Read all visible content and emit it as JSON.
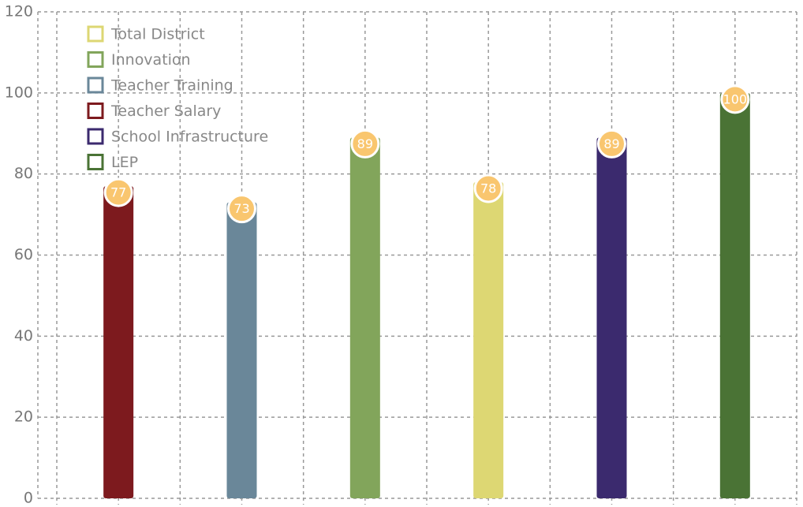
{
  "chart_data": {
    "type": "bar",
    "categories": [
      null,
      null,
      null,
      null,
      null,
      null
    ],
    "series": [
      {
        "name": "Total District",
        "color": "#ddd773",
        "values": [
          null,
          null,
          null,
          78,
          null,
          null
        ]
      },
      {
        "name": "Innovation",
        "color": "#82a55b",
        "values": [
          null,
          null,
          89,
          null,
          null,
          null
        ]
      },
      {
        "name": "Teacher Training",
        "color": "#6a8799",
        "values": [
          null,
          73,
          null,
          null,
          null,
          null
        ]
      },
      {
        "name": "Teacher Salary",
        "color": "#7d1a1e",
        "values": [
          77,
          null,
          null,
          null,
          null,
          null
        ]
      },
      {
        "name": "School Infrastructure",
        "color": "#3b2a6e",
        "values": [
          null,
          null,
          null,
          null,
          89,
          null
        ]
      },
      {
        "name": "LEP",
        "color": "#4a7335",
        "values": [
          null,
          null,
          null,
          null,
          null,
          100
        ]
      }
    ],
    "ylim": [
      0,
      120
    ],
    "yticks": [
      0,
      20,
      40,
      60,
      80,
      100,
      120
    ],
    "grid": true,
    "legend": "upper left"
  }
}
